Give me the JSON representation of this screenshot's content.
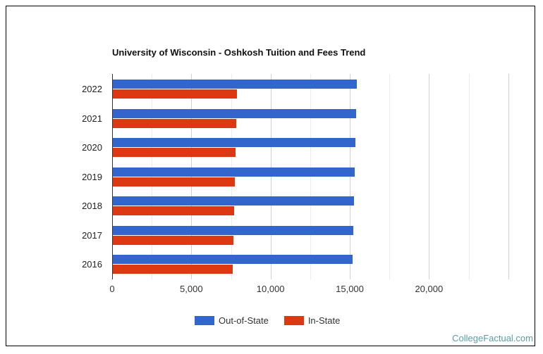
{
  "chart_data": {
    "type": "bar",
    "orientation": "horizontal",
    "title": "University of Wisconsin - Oshkosh Tuition and Fees Trend",
    "xlabel": "",
    "ylabel": "",
    "categories": [
      "2022",
      "2021",
      "2020",
      "2019",
      "2018",
      "2017",
      "2016"
    ],
    "series": [
      {
        "name": "Out-of-State",
        "color": "#3366cc",
        "values": [
          15400,
          15350,
          15300,
          15260,
          15220,
          15170,
          15130
        ]
      },
      {
        "name": "In-State",
        "color": "#dc3912",
        "values": [
          7830,
          7790,
          7740,
          7700,
          7660,
          7610,
          7570
        ]
      }
    ],
    "xlim": [
      0,
      25000
    ],
    "xticks": [
      0,
      5000,
      10000,
      15000,
      20000
    ],
    "xtick_labels": [
      "0",
      "5,000",
      "10,000",
      "15,000",
      "20,000"
    ],
    "grid": true,
    "legend_position": "bottom"
  },
  "credit": "CollegeFactual.com"
}
